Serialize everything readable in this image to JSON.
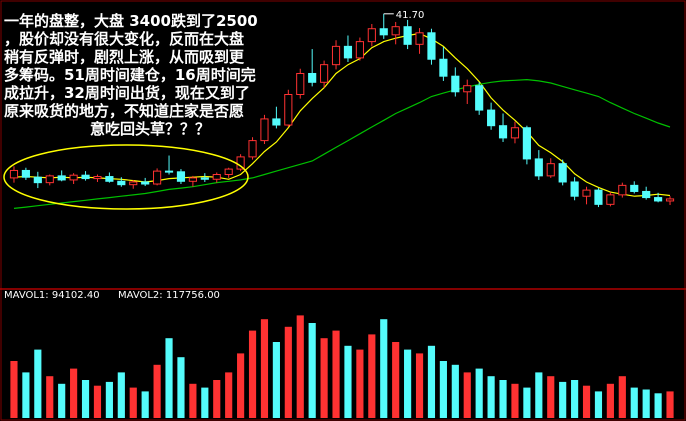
{
  "chart_data": {
    "type": "candlestick",
    "annotation_lines": [
      "一年的盘整，大盘 3400跌到了2500",
      "，股价却没有很大变化，反而在大盘",
      "稍有反弹时，剧烈上涨，从而吸到更",
      "多筹码。51周时间建仓，16周时间完",
      "成拉升，32周时间出货，现在又到了",
      "原来吸货的地方，不知道庄家是否愿",
      "意吃回头草？？？"
    ],
    "peak_label": "41.70",
    "volume_labels": [
      "MAVOL1: 94102.40",
      "MAVOL2: 117756.00"
    ],
    "ylim": [
      2,
      43
    ],
    "up_color": "#ff3232",
    "down_color": "#54fcfc",
    "open": [
      17.5,
      18.6,
      17.6,
      16.8,
      17.8,
      17.2,
      17.9,
      17.4,
      17.7,
      17.0,
      16.5,
      16.9,
      16.6,
      18.5,
      18.4,
      17.0,
      17.5,
      17.3,
      18.0,
      18.8,
      20.6,
      23.0,
      26.2,
      25.3,
      29.8,
      32.9,
      31.6,
      34.2,
      36.9,
      35.2,
      37.6,
      39.5,
      38.6,
      39.8,
      37.2,
      38.9,
      35.0,
      32.5,
      30.2,
      31.1,
      27.5,
      25.2,
      23.4,
      24.9,
      20.3,
      17.8,
      19.6,
      16.9,
      14.8,
      15.7,
      13.6,
      15.0,
      16.4,
      15.5,
      14.6,
      14.1
    ],
    "high": [
      19.2,
      19.0,
      18.4,
      18.0,
      18.6,
      18.2,
      18.5,
      18.0,
      18.3,
      17.6,
      17.2,
      17.5,
      18.9,
      20.8,
      18.8,
      17.8,
      18.2,
      18.3,
      19.0,
      21.0,
      23.5,
      26.8,
      28.0,
      30.5,
      33.6,
      36.5,
      34.8,
      37.8,
      38.5,
      38.2,
      40.2,
      41.7,
      40.5,
      40.8,
      39.6,
      39.5,
      36.8,
      33.8,
      32.0,
      31.6,
      28.6,
      27.0,
      25.8,
      25.2,
      21.6,
      20.4,
      20.2,
      17.6,
      16.2,
      16.0,
      15.4,
      16.8,
      17.0,
      16.2,
      15.3,
      14.8
    ],
    "low": [
      16.8,
      17.2,
      16.0,
      16.4,
      17.0,
      16.6,
      17.1,
      16.9,
      16.8,
      16.2,
      15.9,
      16.3,
      16.4,
      18.0,
      16.6,
      16.2,
      16.9,
      16.8,
      17.5,
      18.5,
      20.2,
      22.5,
      24.8,
      25.0,
      29.2,
      31.0,
      30.8,
      33.5,
      34.6,
      34.8,
      36.9,
      38.0,
      37.2,
      36.5,
      35.8,
      34.2,
      31.8,
      29.5,
      28.4,
      26.8,
      24.6,
      22.8,
      22.6,
      19.5,
      17.2,
      17.5,
      16.4,
      14.2,
      13.6,
      13.2,
      13.3,
      14.6,
      15.2,
      14.3,
      13.9,
      13.5
    ],
    "close": [
      18.6,
      17.6,
      16.8,
      17.8,
      17.2,
      17.9,
      17.4,
      17.7,
      17.0,
      16.5,
      16.9,
      16.6,
      18.5,
      18.4,
      17.0,
      17.5,
      17.3,
      18.0,
      18.8,
      20.6,
      23.0,
      26.2,
      25.3,
      29.8,
      32.9,
      31.6,
      34.2,
      36.9,
      35.2,
      37.6,
      39.5,
      38.6,
      39.8,
      37.2,
      38.9,
      35.0,
      32.5,
      30.2,
      31.1,
      27.5,
      25.2,
      23.4,
      24.9,
      20.3,
      17.8,
      19.6,
      16.9,
      14.8,
      15.7,
      13.6,
      15.0,
      16.4,
      15.5,
      14.6,
      14.1,
      14.4
    ],
    "lines": [
      {
        "color": "#ffff00",
        "values": [
          17.6,
          17.7,
          17.6,
          17.5,
          17.6,
          17.5,
          17.6,
          17.5,
          17.4,
          17.3,
          17.1,
          16.9,
          17.1,
          17.4,
          17.5,
          17.6,
          17.7,
          17.6,
          17.3,
          18.0,
          19.6,
          21.4,
          22.8,
          24.9,
          27.4,
          29.2,
          30.8,
          32.9,
          34.2,
          35.1,
          36.7,
          37.6,
          38.1,
          38.5,
          38.8,
          38.0,
          36.9,
          35.2,
          33.6,
          31.7,
          29.3,
          27.5,
          26.0,
          24.3,
          22.3,
          21.2,
          19.9,
          18.1,
          16.9,
          16.1,
          15.4,
          15.1,
          14.8,
          14.9,
          15.1,
          14.9
        ]
      },
      {
        "color": "#00c000",
        "values": [
          13.0,
          13.2,
          13.4,
          13.6,
          13.8,
          14.0,
          14.2,
          14.4,
          14.6,
          14.8,
          15.0,
          15.2,
          15.5,
          15.8,
          16.0,
          16.2,
          16.5,
          16.8,
          17.0,
          17.2,
          17.5,
          18.0,
          18.5,
          19.0,
          19.5,
          20.0,
          21.0,
          22.0,
          23.0,
          24.0,
          25.0,
          26.0,
          27.0,
          27.8,
          28.6,
          29.5,
          30.0,
          30.5,
          30.9,
          31.3,
          31.6,
          31.8,
          31.9,
          32.0,
          31.8,
          31.5,
          31.0,
          30.5,
          30.0,
          29.5,
          28.6,
          27.8,
          27.0,
          26.3,
          25.6,
          25.0
        ]
      }
    ],
    "volume_ylim": [
      0,
      300000
    ],
    "volume": [
      150000,
      120000,
      180000,
      110000,
      90000,
      130000,
      100000,
      85000,
      95000,
      120000,
      80000,
      70000,
      140000,
      210000,
      160000,
      90000,
      80000,
      100000,
      120000,
      170000,
      230000,
      260000,
      200000,
      240000,
      270000,
      250000,
      210000,
      230000,
      190000,
      180000,
      220000,
      260000,
      200000,
      180000,
      170000,
      190000,
      150000,
      140000,
      120000,
      130000,
      110000,
      100000,
      90000,
      80000,
      120000,
      110000,
      95000,
      100000,
      85000,
      70000,
      90000,
      110000,
      80000,
      75000,
      65000,
      70000
    ]
  }
}
